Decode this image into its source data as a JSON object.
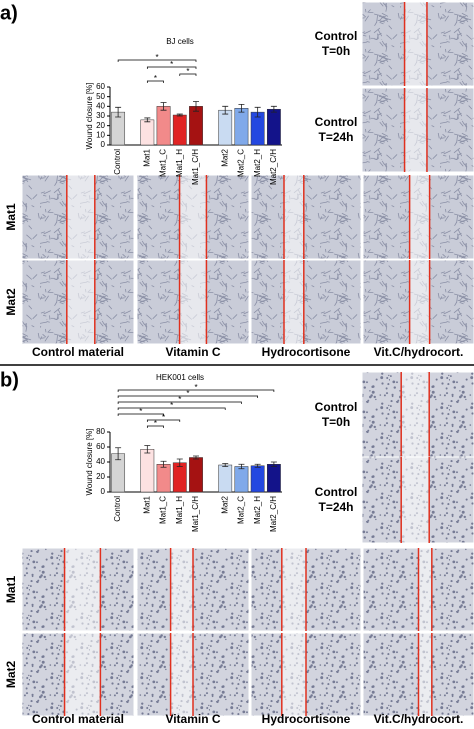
{
  "chart_data": [
    {
      "type": "bar",
      "title": "BJ cells",
      "ylabel": "Wound closure [%]",
      "categories": [
        "Control",
        "Mat1",
        "Mat1_C",
        "Mat1_H",
        "Mat1_C/H",
        "Mat2",
        "Mat2_C",
        "Mat2_H",
        "Mat2_C/H"
      ],
      "values": [
        34,
        26,
        40,
        31,
        40,
        36,
        38,
        34,
        37
      ],
      "errors": [
        5,
        2,
        4,
        1,
        5,
        4,
        4,
        5,
        3
      ],
      "colors": [
        "#d4d4d4",
        "#fde2e2",
        "#f28a8a",
        "#e02424",
        "#a51212",
        "#c9dbf2",
        "#80a9ea",
        "#2448e0",
        "#13138a"
      ],
      "ylim": [
        0,
        60
      ],
      "yticks": [
        0,
        10,
        20,
        30,
        40,
        50,
        60
      ],
      "significance": [
        {
          "between": [
            1,
            2
          ],
          "label": "*"
        },
        {
          "between": [
            3,
            4
          ],
          "label": "*"
        },
        {
          "between": [
            1,
            4
          ],
          "label": "*"
        },
        {
          "between": [
            0,
            4
          ],
          "label": "*"
        }
      ]
    },
    {
      "type": "bar",
      "title": "HEK001 cells",
      "ylabel": "Wound closure [%]",
      "categories": [
        "Control",
        "Mat1",
        "Mat1_C",
        "Mat1_H",
        "Mat1_C/H",
        "Mat2",
        "Mat2_C",
        "Mat2_H",
        "Mat2_C/H"
      ],
      "values": [
        51,
        57,
        37,
        39,
        46,
        36,
        34,
        35,
        37
      ],
      "errors": [
        8,
        5,
        4,
        5,
        2,
        2,
        3,
        2,
        3
      ],
      "colors": [
        "#d4d4d4",
        "#fde2e2",
        "#f28a8a",
        "#e02424",
        "#a51212",
        "#c9dbf2",
        "#80a9ea",
        "#2448e0",
        "#13138a"
      ],
      "ylim": [
        0,
        80
      ],
      "yticks": [
        0,
        20,
        40,
        60,
        80
      ],
      "significance": [
        {
          "between": [
            1,
            2
          ],
          "label": "*"
        },
        {
          "between": [
            1,
            3
          ],
          "label": "*"
        },
        {
          "between": [
            0,
            2
          ],
          "label": "*"
        },
        {
          "between": [
            0,
            5
          ],
          "label": "*"
        },
        {
          "between": [
            0,
            6
          ],
          "label": "*"
        },
        {
          "between": [
            0,
            7
          ],
          "label": "*"
        },
        {
          "between": [
            0,
            8
          ],
          "label": "*"
        }
      ]
    }
  ],
  "panels": [
    {
      "label": "a)",
      "side_labels": [
        [
          "Control",
          "T=0h"
        ],
        [
          "Control",
          "T=24h"
        ]
      ],
      "row_labels": [
        "Mat1",
        "Mat2"
      ],
      "column_labels": [
        "Control material",
        "Vitamin C",
        "Hydrocortisone",
        "Vit.C/hydrocort."
      ]
    },
    {
      "label": "b)",
      "side_labels": [
        [
          "Control",
          "T=0h"
        ],
        [
          "Control",
          "T=24h"
        ]
      ],
      "row_labels": [
        "Mat1",
        "Mat2"
      ],
      "column_labels": [
        "Control material",
        "Vitamin C",
        "Hydrocortisone",
        "Vit.C/hydrocort."
      ]
    }
  ]
}
